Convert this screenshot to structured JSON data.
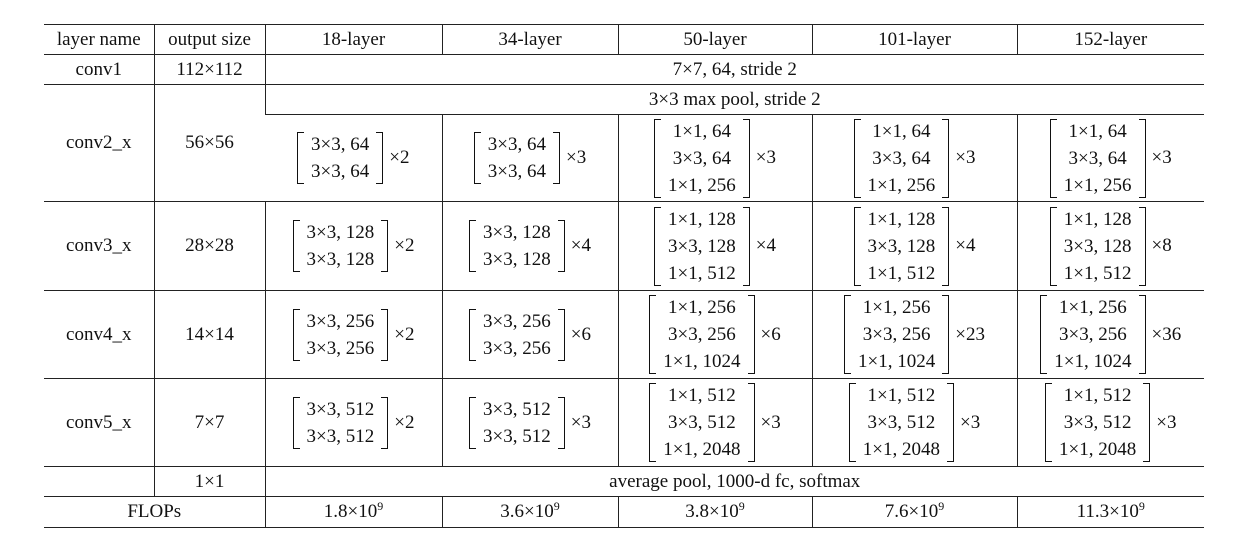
{
  "header": {
    "layer_name": "layer name",
    "output_size": "output size",
    "cols": [
      "18-layer",
      "34-layer",
      "50-layer",
      "101-layer",
      "152-layer"
    ]
  },
  "conv1": {
    "name": "conv1",
    "size": "112×112",
    "spec": "7×7, 64, stride 2"
  },
  "conv2": {
    "name": "conv2_x",
    "size": "56×56",
    "pool": "3×3 max pool, stride 2",
    "blocks": [
      {
        "lines": [
          "3×3, 64",
          "3×3, 64"
        ],
        "mult": "×2"
      },
      {
        "lines": [
          "3×3, 64",
          "3×3, 64"
        ],
        "mult": "×3"
      },
      {
        "lines": [
          "1×1, 64",
          "3×3, 64",
          "1×1, 256"
        ],
        "mult": "×3"
      },
      {
        "lines": [
          "1×1, 64",
          "3×3, 64",
          "1×1, 256"
        ],
        "mult": "×3"
      },
      {
        "lines": [
          "1×1, 64",
          "3×3, 64",
          "1×1, 256"
        ],
        "mult": "×3"
      }
    ]
  },
  "conv3": {
    "name": "conv3_x",
    "size": "28×28",
    "blocks": [
      {
        "lines": [
          "3×3, 128",
          "3×3, 128"
        ],
        "mult": "×2"
      },
      {
        "lines": [
          "3×3, 128",
          "3×3, 128"
        ],
        "mult": "×4"
      },
      {
        "lines": [
          "1×1, 128",
          "3×3, 128",
          "1×1, 512"
        ],
        "mult": "×4"
      },
      {
        "lines": [
          "1×1, 128",
          "3×3, 128",
          "1×1, 512"
        ],
        "mult": "×4"
      },
      {
        "lines": [
          "1×1, 128",
          "3×3, 128",
          "1×1, 512"
        ],
        "mult": "×8"
      }
    ]
  },
  "conv4": {
    "name": "conv4_x",
    "size": "14×14",
    "blocks": [
      {
        "lines": [
          "3×3, 256",
          "3×3, 256"
        ],
        "mult": "×2"
      },
      {
        "lines": [
          "3×3, 256",
          "3×3, 256"
        ],
        "mult": "×6"
      },
      {
        "lines": [
          "1×1, 256",
          "3×3, 256",
          "1×1, 1024"
        ],
        "mult": "×6"
      },
      {
        "lines": [
          "1×1, 256",
          "3×3, 256",
          "1×1, 1024"
        ],
        "mult": "×23"
      },
      {
        "lines": [
          "1×1, 256",
          "3×3, 256",
          "1×1, 1024"
        ],
        "mult": "×36"
      }
    ]
  },
  "conv5": {
    "name": "conv5_x",
    "size": "7×7",
    "blocks": [
      {
        "lines": [
          "3×3, 512",
          "3×3, 512"
        ],
        "mult": "×2"
      },
      {
        "lines": [
          "3×3, 512",
          "3×3, 512"
        ],
        "mult": "×3"
      },
      {
        "lines": [
          "1×1, 512",
          "3×3, 512",
          "1×1, 2048"
        ],
        "mult": "×3"
      },
      {
        "lines": [
          "1×1, 512",
          "3×3, 512",
          "1×1, 2048"
        ],
        "mult": "×3"
      },
      {
        "lines": [
          "1×1, 512",
          "3×3, 512",
          "1×1, 2048"
        ],
        "mult": "×3"
      }
    ]
  },
  "final": {
    "size": "1×1",
    "spec": "average pool, 1000-d fc, softmax"
  },
  "flops": {
    "label": "FLOPs",
    "values": [
      {
        "mantissa": "1.8×10",
        "exp": "9"
      },
      {
        "mantissa": "3.6×10",
        "exp": "9"
      },
      {
        "mantissa": "3.8×10",
        "exp": "9"
      },
      {
        "mantissa": "7.6×10",
        "exp": "9"
      },
      {
        "mantissa": "11.3×10",
        "exp": "9"
      }
    ]
  }
}
